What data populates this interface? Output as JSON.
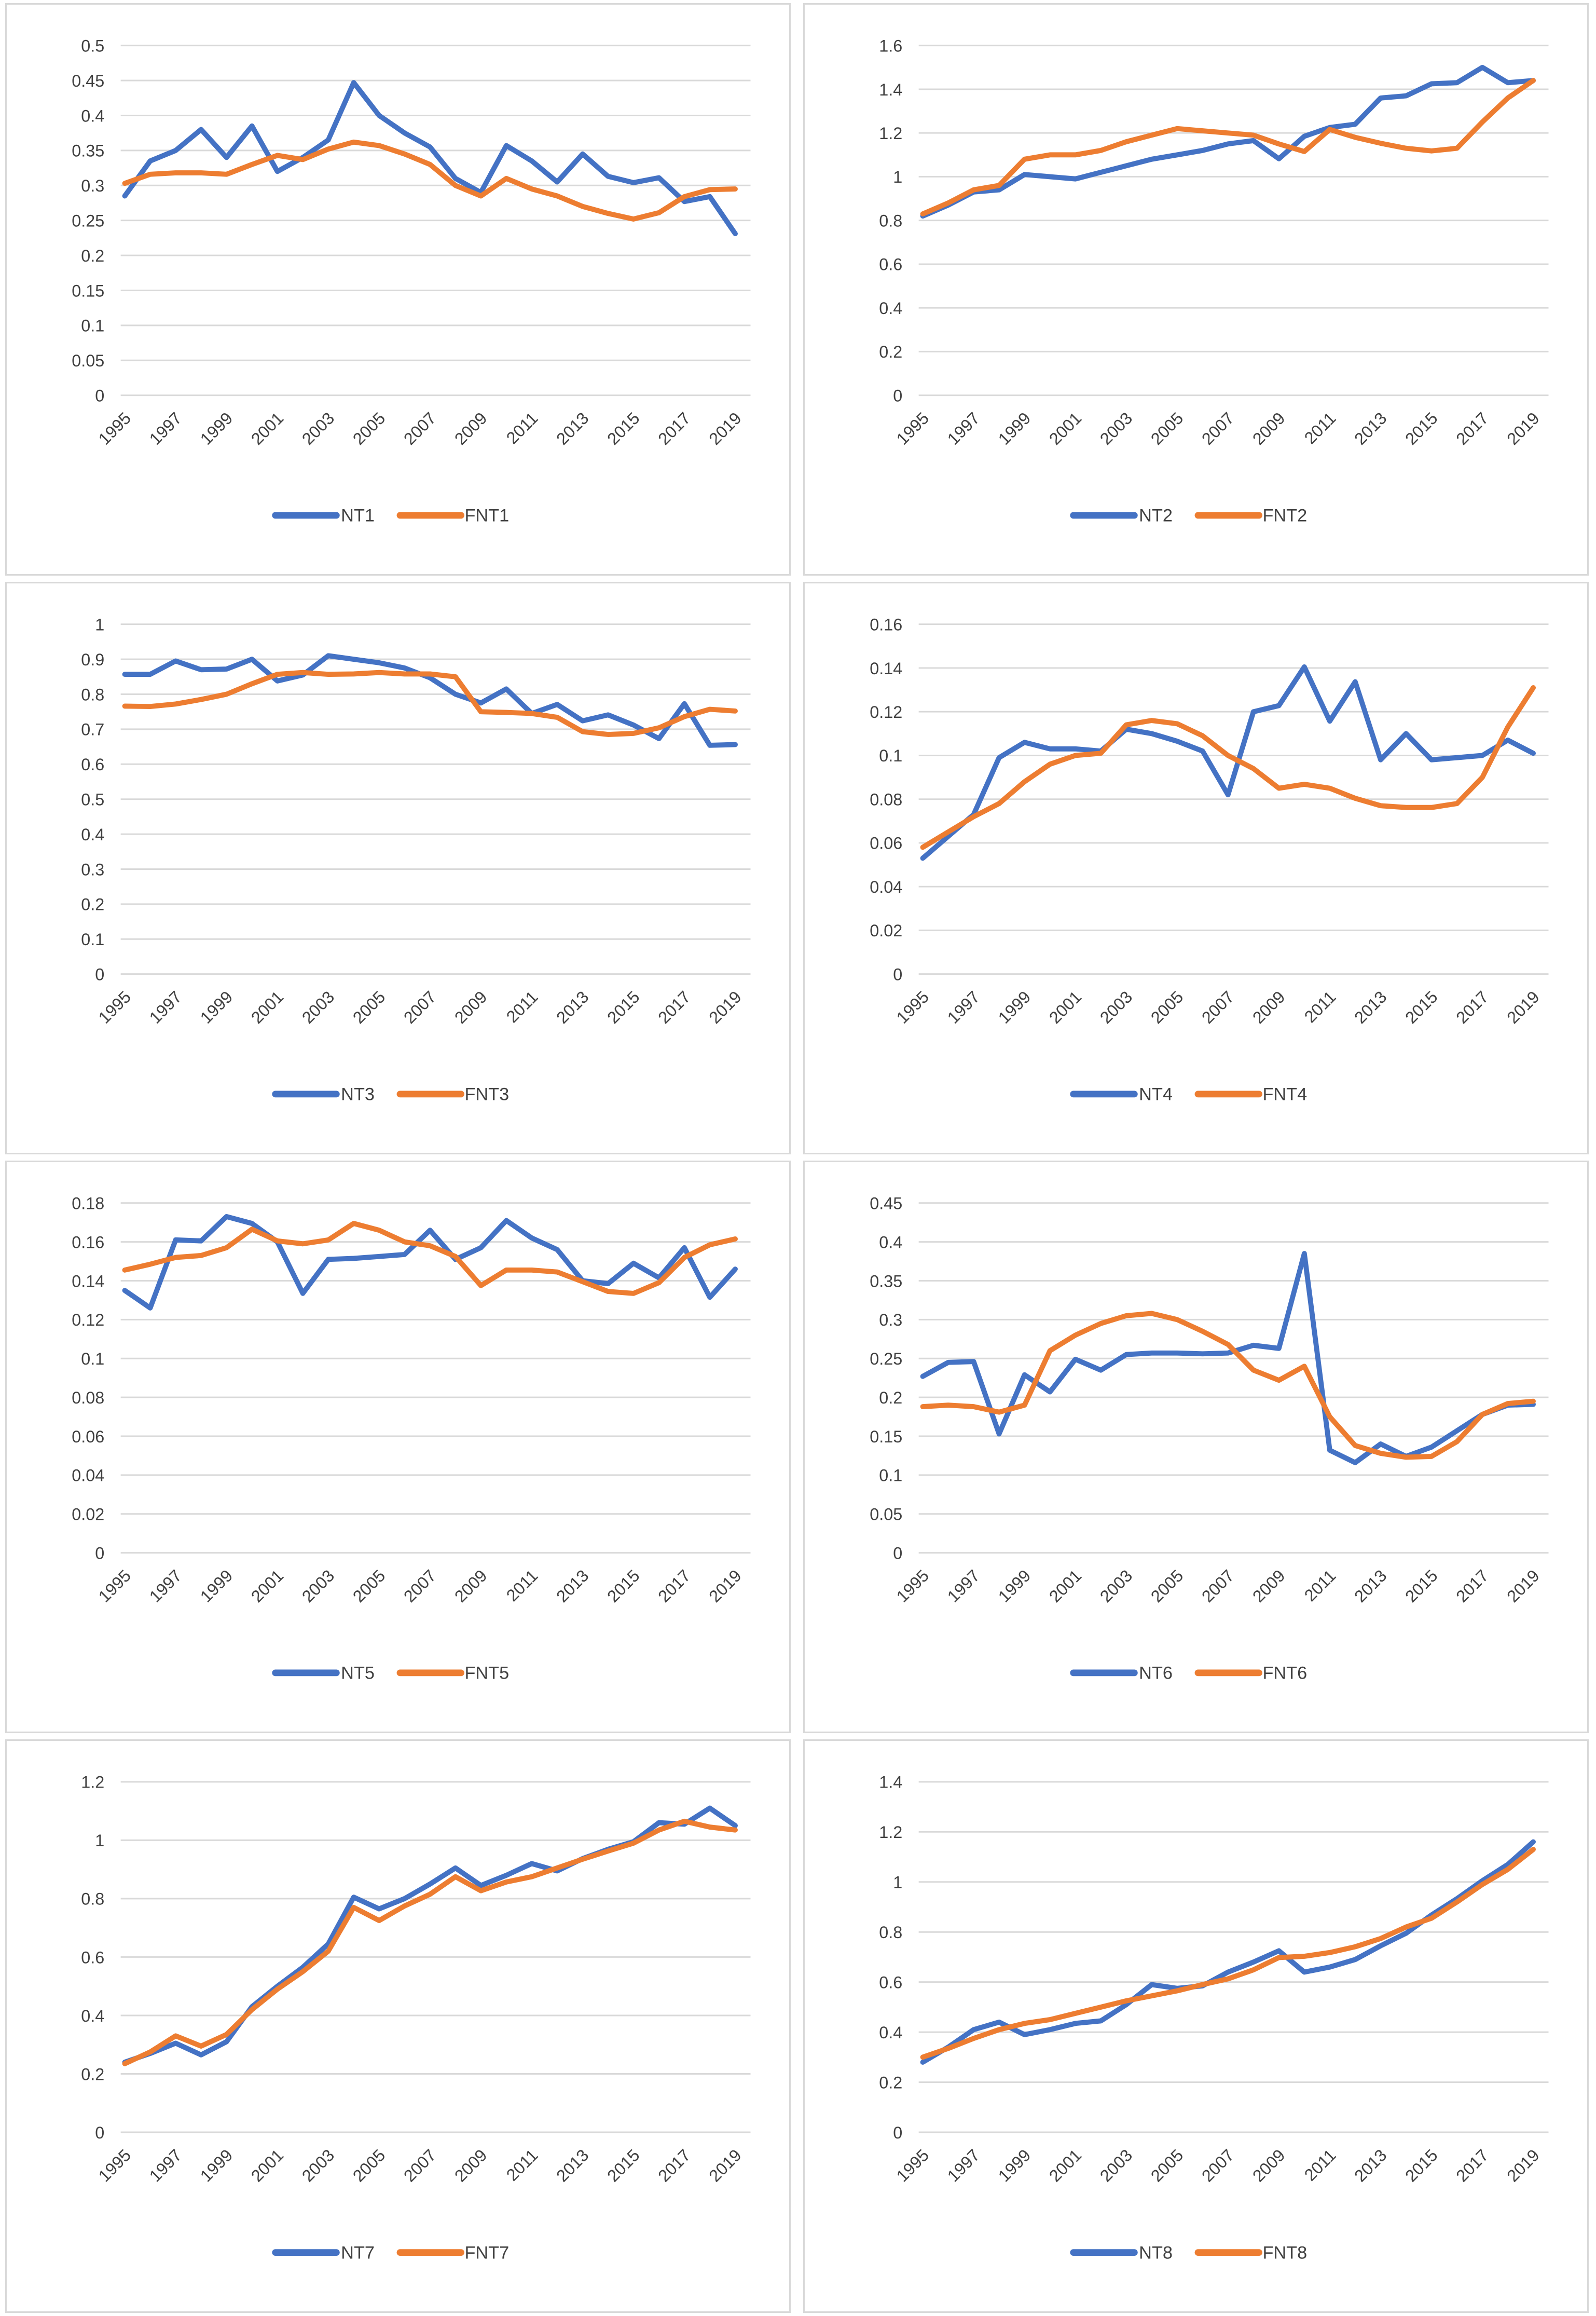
{
  "page": {
    "background": "#ffffff",
    "description": "2x4 grid of Excel-style line charts comparing NT and FNT series 1995-2019"
  },
  "colors": {
    "nt_line": "#4472C4",
    "fnt_line": "#ED7D31",
    "gridline": "#D9D9D9",
    "panel_border": "#D9D9D9",
    "axis_text": "#404040"
  },
  "x_axis": {
    "years": [
      1995,
      1996,
      1997,
      1998,
      1999,
      2000,
      2001,
      2002,
      2003,
      2004,
      2005,
      2006,
      2007,
      2008,
      2009,
      2010,
      2011,
      2012,
      2013,
      2014,
      2015,
      2016,
      2017,
      2018,
      2019
    ],
    "tick_labels": [
      "1995",
      "1997",
      "1999",
      "2001",
      "2003",
      "2005",
      "2007",
      "2009",
      "2011",
      "2013",
      "2015",
      "2017",
      "2019"
    ]
  },
  "chart_data": [
    {
      "type": "line",
      "title": "",
      "grid": true,
      "legend_position": "bottom",
      "xlabel": "",
      "ylabel": "",
      "ylim": [
        0,
        0.5
      ],
      "y_tick_labels": [
        "0.5",
        "0.45",
        "0.4",
        "0.35",
        "0.3",
        "0.25",
        "0.2",
        "0.15",
        "0.1",
        "0.05",
        "0"
      ],
      "categories": [
        1995,
        1996,
        1997,
        1998,
        1999,
        2000,
        2001,
        2002,
        2003,
        2004,
        2005,
        2006,
        2007,
        2008,
        2009,
        2010,
        2011,
        2012,
        2013,
        2014,
        2015,
        2016,
        2017,
        2018,
        2019
      ],
      "series": [
        {
          "name": "NT1",
          "color": "#4472C4",
          "values": [
            0.285,
            0.335,
            0.35,
            0.38,
            0.34,
            0.385,
            0.32,
            0.34,
            0.365,
            0.447,
            0.4,
            0.375,
            0.355,
            0.31,
            0.29,
            0.357,
            0.335,
            0.305,
            0.345,
            0.313,
            0.304,
            0.311,
            0.277,
            0.284,
            0.231
          ]
        },
        {
          "name": "FNT1",
          "color": "#ED7D31",
          "values": [
            0.303,
            0.316,
            0.318,
            0.318,
            0.316,
            0.33,
            0.343,
            0.337,
            0.352,
            0.362,
            0.357,
            0.345,
            0.33,
            0.3,
            0.285,
            0.31,
            0.295,
            0.285,
            0.27,
            0.26,
            0.252,
            0.261,
            0.284,
            0.294,
            0.295
          ]
        }
      ]
    },
    {
      "type": "line",
      "title": "",
      "grid": true,
      "legend_position": "bottom",
      "xlabel": "",
      "ylabel": "",
      "ylim": [
        0,
        1.6
      ],
      "y_tick_labels": [
        "1.6",
        "1.4",
        "1.2",
        "1",
        "0.8",
        "0.6",
        "0.4",
        "0.2",
        "0"
      ],
      "categories": [
        1995,
        1996,
        1997,
        1998,
        1999,
        2000,
        2001,
        2002,
        2003,
        2004,
        2005,
        2006,
        2007,
        2008,
        2009,
        2010,
        2011,
        2012,
        2013,
        2014,
        2015,
        2016,
        2017,
        2018,
        2019
      ],
      "series": [
        {
          "name": "NT2",
          "color": "#4472C4",
          "values": [
            0.82,
            0.87,
            0.93,
            0.94,
            1.01,
            1.0,
            0.99,
            1.02,
            1.05,
            1.08,
            1.1,
            1.12,
            1.15,
            1.165,
            1.082,
            1.185,
            1.225,
            1.24,
            1.36,
            1.37,
            1.425,
            1.43,
            1.5,
            1.43,
            1.44
          ]
        },
        {
          "name": "FNT2",
          "color": "#ED7D31",
          "values": [
            0.83,
            0.88,
            0.94,
            0.96,
            1.08,
            1.1,
            1.1,
            1.12,
            1.16,
            1.19,
            1.22,
            1.21,
            1.2,
            1.19,
            1.15,
            1.115,
            1.216,
            1.18,
            1.153,
            1.13,
            1.118,
            1.13,
            1.25,
            1.36,
            1.44
          ]
        }
      ]
    },
    {
      "type": "line",
      "title": "",
      "grid": true,
      "legend_position": "bottom",
      "xlabel": "",
      "ylabel": "",
      "ylim": [
        0,
        1.0
      ],
      "y_tick_labels": [
        "1",
        "0.9",
        "0.8",
        "0.7",
        "0.6",
        "0.5",
        "0.4",
        "0.3",
        "0.2",
        "0.1",
        "0"
      ],
      "categories": [
        1995,
        1996,
        1997,
        1998,
        1999,
        2000,
        2001,
        2002,
        2003,
        2004,
        2005,
        2006,
        2007,
        2008,
        2009,
        2010,
        2011,
        2012,
        2013,
        2014,
        2015,
        2016,
        2017,
        2018,
        2019
      ],
      "series": [
        {
          "name": "NT3",
          "color": "#4472C4",
          "values": [
            0.857,
            0.857,
            0.895,
            0.87,
            0.872,
            0.9,
            0.838,
            0.855,
            0.91,
            0.9,
            0.89,
            0.875,
            0.847,
            0.8,
            0.775,
            0.815,
            0.745,
            0.771,
            0.724,
            0.741,
            0.712,
            0.673,
            0.773,
            0.654,
            0.656
          ]
        },
        {
          "name": "FNT3",
          "color": "#ED7D31",
          "values": [
            0.766,
            0.765,
            0.772,
            0.785,
            0.8,
            0.83,
            0.857,
            0.862,
            0.857,
            0.858,
            0.862,
            0.858,
            0.858,
            0.85,
            0.75,
            0.748,
            0.745,
            0.734,
            0.693,
            0.685,
            0.688,
            0.704,
            0.736,
            0.757,
            0.752
          ]
        }
      ]
    },
    {
      "type": "line",
      "title": "",
      "grid": true,
      "legend_position": "bottom",
      "xlabel": "",
      "ylabel": "",
      "ylim": [
        0,
        0.16
      ],
      "y_tick_labels": [
        "0.16",
        "0.14",
        "0.12",
        "0.1",
        "0.08",
        "0.06",
        "0.04",
        "0.02",
        "0"
      ],
      "categories": [
        1995,
        1996,
        1997,
        1998,
        1999,
        2000,
        2001,
        2002,
        2003,
        2004,
        2005,
        2006,
        2007,
        2008,
        2009,
        2010,
        2011,
        2012,
        2013,
        2014,
        2015,
        2016,
        2017,
        2018,
        2019
      ],
      "series": [
        {
          "name": "NT4",
          "color": "#4472C4",
          "values": [
            0.053,
            0.063,
            0.073,
            0.099,
            0.106,
            0.103,
            0.103,
            0.102,
            0.112,
            0.11,
            0.1065,
            0.102,
            0.082,
            0.12,
            0.1228,
            0.1405,
            0.1157,
            0.1337,
            0.098,
            0.11,
            0.098,
            0.099,
            0.1,
            0.107,
            0.101
          ]
        },
        {
          "name": "FNT4",
          "color": "#ED7D31",
          "values": [
            0.058,
            0.065,
            0.072,
            0.078,
            0.088,
            0.096,
            0.1,
            0.101,
            0.114,
            0.116,
            0.1145,
            0.109,
            0.1,
            0.094,
            0.085,
            0.0868,
            0.085,
            0.0804,
            0.077,
            0.0762,
            0.0762,
            0.078,
            0.09,
            0.113,
            0.131
          ]
        }
      ]
    },
    {
      "type": "line",
      "title": "",
      "grid": true,
      "legend_position": "bottom",
      "xlabel": "",
      "ylabel": "",
      "ylim": [
        0,
        0.18
      ],
      "y_tick_labels": [
        "0.18",
        "0.16",
        "0.14",
        "0.12",
        "0.1",
        "0.08",
        "0.06",
        "0.04",
        "0.02",
        "0"
      ],
      "categories": [
        1995,
        1996,
        1997,
        1998,
        1999,
        2000,
        2001,
        2002,
        2003,
        2004,
        2005,
        2006,
        2007,
        2008,
        2009,
        2010,
        2011,
        2012,
        2013,
        2014,
        2015,
        2016,
        2017,
        2018,
        2019
      ],
      "series": [
        {
          "name": "NT5",
          "color": "#4472C4",
          "values": [
            0.135,
            0.126,
            0.161,
            0.1605,
            0.173,
            0.1695,
            0.16,
            0.1335,
            0.151,
            0.1515,
            0.1525,
            0.1535,
            0.166,
            0.151,
            0.157,
            0.171,
            0.162,
            0.156,
            0.14,
            0.1385,
            0.149,
            0.1415,
            0.157,
            0.1315,
            0.146
          ]
        },
        {
          "name": "FNT5",
          "color": "#ED7D31",
          "values": [
            0.1455,
            0.1485,
            0.152,
            0.153,
            0.157,
            0.1665,
            0.1605,
            0.159,
            0.161,
            0.1695,
            0.166,
            0.16,
            0.158,
            0.1525,
            0.1375,
            0.1455,
            0.1455,
            0.1445,
            0.1395,
            0.1345,
            0.1335,
            0.139,
            0.152,
            0.1585,
            0.1615
          ]
        }
      ]
    },
    {
      "type": "line",
      "title": "",
      "grid": true,
      "legend_position": "bottom",
      "xlabel": "",
      "ylabel": "",
      "ylim": [
        0,
        0.45
      ],
      "y_tick_labels": [
        "0.45",
        "0.4",
        "0.35",
        "0.3",
        "0.25",
        "0.2",
        "0.15",
        "0.1",
        "0.05",
        "0"
      ],
      "categories": [
        1995,
        1996,
        1997,
        1998,
        1999,
        2000,
        2001,
        2002,
        2003,
        2004,
        2005,
        2006,
        2007,
        2008,
        2009,
        2010,
        2011,
        2012,
        2013,
        2014,
        2015,
        2016,
        2017,
        2018,
        2019
      ],
      "series": [
        {
          "name": "NT6",
          "color": "#4472C4",
          "values": [
            0.227,
            0.245,
            0.246,
            0.153,
            0.229,
            0.207,
            0.249,
            0.235,
            0.255,
            0.257,
            0.257,
            0.256,
            0.257,
            0.267,
            0.263,
            0.385,
            0.132,
            0.116,
            0.14,
            0.124,
            0.136,
            0.157,
            0.178,
            0.19,
            0.191
          ]
        },
        {
          "name": "FNT6",
          "color": "#ED7D31",
          "values": [
            0.188,
            0.19,
            0.188,
            0.181,
            0.19,
            0.26,
            0.28,
            0.295,
            0.305,
            0.308,
            0.3,
            0.285,
            0.268,
            0.235,
            0.222,
            0.24,
            0.175,
            0.138,
            0.128,
            0.123,
            0.124,
            0.143,
            0.178,
            0.192,
            0.195
          ]
        }
      ]
    },
    {
      "type": "line",
      "title": "",
      "grid": true,
      "legend_position": "bottom",
      "xlabel": "",
      "ylabel": "",
      "ylim": [
        0,
        1.2
      ],
      "y_tick_labels": [
        "1.2",
        "1",
        "0.8",
        "0.6",
        "0.4",
        "0.2",
        "0"
      ],
      "categories": [
        1995,
        1996,
        1997,
        1998,
        1999,
        2000,
        2001,
        2002,
        2003,
        2004,
        2005,
        2006,
        2007,
        2008,
        2009,
        2010,
        2011,
        2012,
        2013,
        2014,
        2015,
        2016,
        2017,
        2018,
        2019
      ],
      "series": [
        {
          "name": "NT7",
          "color": "#4472C4",
          "values": [
            0.24,
            0.27,
            0.305,
            0.265,
            0.31,
            0.43,
            0.5,
            0.565,
            0.645,
            0.805,
            0.765,
            0.8,
            0.85,
            0.905,
            0.845,
            0.88,
            0.92,
            0.895,
            0.937,
            0.969,
            0.995,
            1.06,
            1.055,
            1.11,
            1.05
          ]
        },
        {
          "name": "FNT7",
          "color": "#ED7D31",
          "values": [
            0.235,
            0.275,
            0.33,
            0.295,
            0.335,
            0.42,
            0.49,
            0.55,
            0.62,
            0.77,
            0.725,
            0.775,
            0.815,
            0.875,
            0.827,
            0.857,
            0.875,
            0.905,
            0.935,
            0.963,
            0.99,
            1.035,
            1.065,
            1.045,
            1.035
          ]
        }
      ]
    },
    {
      "type": "line",
      "title": "",
      "grid": true,
      "legend_position": "bottom",
      "xlabel": "",
      "ylabel": "",
      "ylim": [
        0,
        1.4
      ],
      "y_tick_labels": [
        "1.4",
        "1.2",
        "1",
        "0.8",
        "0.6",
        "0.4",
        "0.2",
        "0"
      ],
      "categories": [
        1995,
        1996,
        1997,
        1998,
        1999,
        2000,
        2001,
        2002,
        2003,
        2004,
        2005,
        2006,
        2007,
        2008,
        2009,
        2010,
        2011,
        2012,
        2013,
        2014,
        2015,
        2016,
        2017,
        2018,
        2019
      ],
      "series": [
        {
          "name": "NT8",
          "color": "#4472C4",
          "values": [
            0.28,
            0.34,
            0.41,
            0.44,
            0.39,
            0.41,
            0.435,
            0.445,
            0.51,
            0.59,
            0.575,
            0.585,
            0.64,
            0.68,
            0.725,
            0.64,
            0.66,
            0.69,
            0.745,
            0.795,
            0.868,
            0.933,
            1.005,
            1.07,
            1.16
          ]
        },
        {
          "name": "FNT8",
          "color": "#ED7D31",
          "values": [
            0.3,
            0.335,
            0.375,
            0.41,
            0.435,
            0.45,
            0.475,
            0.5,
            0.525,
            0.545,
            0.565,
            0.59,
            0.613,
            0.649,
            0.698,
            0.703,
            0.718,
            0.741,
            0.774,
            0.82,
            0.855,
            0.92,
            0.99,
            1.05,
            1.13
          ]
        }
      ]
    }
  ]
}
